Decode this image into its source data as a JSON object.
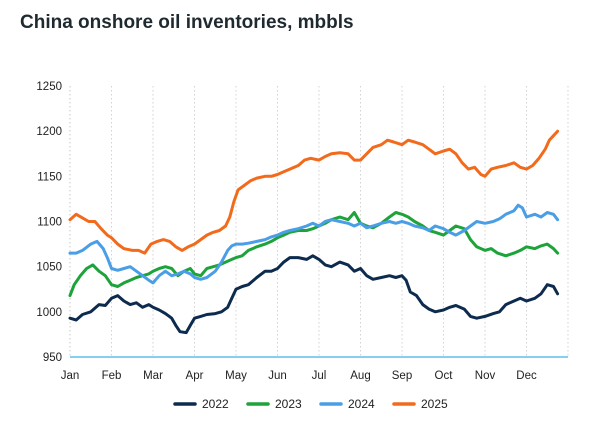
{
  "chart_data": {
    "type": "line",
    "title": "China onshore oil inventories, mbbls",
    "xlabel": "",
    "ylabel": "",
    "x_ticks": [
      "Jan",
      "Feb",
      "Mar",
      "Apr",
      "May",
      "Jun",
      "Jul",
      "Aug",
      "Sep",
      "Oct",
      "Nov",
      "Dec"
    ],
    "y_ticks": [
      950,
      1000,
      1050,
      1100,
      1150,
      1200,
      1250
    ],
    "ylim": [
      950,
      1250
    ],
    "xlim": [
      1,
      13
    ],
    "x_unit_note": "month",
    "grid": "vertical dotted",
    "legend_position": "bottom",
    "series": [
      {
        "name": "2022",
        "color": "#0d2b4e",
        "points": [
          [
            1.0,
            993
          ],
          [
            1.15,
            991
          ],
          [
            1.3,
            997
          ],
          [
            1.5,
            1000
          ],
          [
            1.7,
            1008
          ],
          [
            1.85,
            1007
          ],
          [
            2.0,
            1015
          ],
          [
            2.15,
            1018
          ],
          [
            2.3,
            1012
          ],
          [
            2.45,
            1008
          ],
          [
            2.6,
            1010
          ],
          [
            2.75,
            1005
          ],
          [
            2.9,
            1008
          ],
          [
            3.0,
            1005
          ],
          [
            3.15,
            1002
          ],
          [
            3.3,
            998
          ],
          [
            3.45,
            993
          ],
          [
            3.55,
            985
          ],
          [
            3.65,
            978
          ],
          [
            3.8,
            977
          ],
          [
            3.9,
            985
          ],
          [
            4.0,
            993
          ],
          [
            4.15,
            995
          ],
          [
            4.3,
            997
          ],
          [
            4.5,
            998
          ],
          [
            4.65,
            1000
          ],
          [
            4.8,
            1005
          ],
          [
            4.9,
            1015
          ],
          [
            5.0,
            1025
          ],
          [
            5.15,
            1028
          ],
          [
            5.3,
            1030
          ],
          [
            5.5,
            1038
          ],
          [
            5.7,
            1045
          ],
          [
            5.85,
            1045
          ],
          [
            6.0,
            1048
          ],
          [
            6.15,
            1055
          ],
          [
            6.3,
            1060
          ],
          [
            6.5,
            1060
          ],
          [
            6.7,
            1058
          ],
          [
            6.85,
            1062
          ],
          [
            7.0,
            1058
          ],
          [
            7.15,
            1052
          ],
          [
            7.3,
            1050
          ],
          [
            7.5,
            1055
          ],
          [
            7.7,
            1052
          ],
          [
            7.85,
            1045
          ],
          [
            8.0,
            1048
          ],
          [
            8.15,
            1040
          ],
          [
            8.3,
            1036
          ],
          [
            8.5,
            1038
          ],
          [
            8.7,
            1040
          ],
          [
            8.85,
            1038
          ],
          [
            9.0,
            1040
          ],
          [
            9.1,
            1035
          ],
          [
            9.2,
            1022
          ],
          [
            9.35,
            1018
          ],
          [
            9.5,
            1008
          ],
          [
            9.65,
            1003
          ],
          [
            9.8,
            1000
          ],
          [
            10.0,
            1002
          ],
          [
            10.15,
            1005
          ],
          [
            10.3,
            1007
          ],
          [
            10.5,
            1003
          ],
          [
            10.65,
            995
          ],
          [
            10.8,
            993
          ],
          [
            11.0,
            995
          ],
          [
            11.2,
            998
          ],
          [
            11.35,
            1000
          ],
          [
            11.5,
            1008
          ],
          [
            11.7,
            1012
          ],
          [
            11.85,
            1015
          ],
          [
            12.0,
            1012
          ],
          [
            12.2,
            1015
          ],
          [
            12.35,
            1020
          ],
          [
            12.5,
            1030
          ],
          [
            12.65,
            1028
          ],
          [
            12.75,
            1020
          ]
        ]
      },
      {
        "name": "2023",
        "color": "#1ea33a",
        "points": [
          [
            1.0,
            1018
          ],
          [
            1.1,
            1030
          ],
          [
            1.25,
            1040
          ],
          [
            1.4,
            1048
          ],
          [
            1.55,
            1052
          ],
          [
            1.7,
            1045
          ],
          [
            1.85,
            1040
          ],
          [
            2.0,
            1030
          ],
          [
            2.15,
            1028
          ],
          [
            2.3,
            1032
          ],
          [
            2.45,
            1035
          ],
          [
            2.6,
            1038
          ],
          [
            2.75,
            1040
          ],
          [
            2.9,
            1042
          ],
          [
            3.0,
            1045
          ],
          [
            3.15,
            1048
          ],
          [
            3.3,
            1050
          ],
          [
            3.45,
            1048
          ],
          [
            3.6,
            1040
          ],
          [
            3.75,
            1045
          ],
          [
            3.9,
            1048
          ],
          [
            4.0,
            1042
          ],
          [
            4.15,
            1040
          ],
          [
            4.3,
            1048
          ],
          [
            4.45,
            1050
          ],
          [
            4.6,
            1052
          ],
          [
            4.75,
            1055
          ],
          [
            4.9,
            1058
          ],
          [
            5.0,
            1060
          ],
          [
            5.15,
            1062
          ],
          [
            5.3,
            1068
          ],
          [
            5.5,
            1072
          ],
          [
            5.7,
            1075
          ],
          [
            5.85,
            1078
          ],
          [
            6.0,
            1082
          ],
          [
            6.15,
            1085
          ],
          [
            6.3,
            1088
          ],
          [
            6.5,
            1090
          ],
          [
            6.7,
            1090
          ],
          [
            6.85,
            1092
          ],
          [
            7.0,
            1095
          ],
          [
            7.15,
            1098
          ],
          [
            7.3,
            1102
          ],
          [
            7.5,
            1105
          ],
          [
            7.7,
            1102
          ],
          [
            7.85,
            1110
          ],
          [
            8.0,
            1098
          ],
          [
            8.15,
            1095
          ],
          [
            8.3,
            1093
          ],
          [
            8.5,
            1098
          ],
          [
            8.7,
            1105
          ],
          [
            8.85,
            1110
          ],
          [
            9.0,
            1108
          ],
          [
            9.15,
            1105
          ],
          [
            9.3,
            1100
          ],
          [
            9.5,
            1095
          ],
          [
            9.65,
            1090
          ],
          [
            9.8,
            1088
          ],
          [
            10.0,
            1085
          ],
          [
            10.15,
            1090
          ],
          [
            10.3,
            1095
          ],
          [
            10.5,
            1092
          ],
          [
            10.65,
            1080
          ],
          [
            10.8,
            1072
          ],
          [
            11.0,
            1068
          ],
          [
            11.15,
            1070
          ],
          [
            11.3,
            1065
          ],
          [
            11.5,
            1062
          ],
          [
            11.7,
            1065
          ],
          [
            11.85,
            1068
          ],
          [
            12.0,
            1072
          ],
          [
            12.2,
            1070
          ],
          [
            12.35,
            1073
          ],
          [
            12.5,
            1075
          ],
          [
            12.65,
            1070
          ],
          [
            12.75,
            1065
          ]
        ]
      },
      {
        "name": "2024",
        "color": "#4a9ee6",
        "points": [
          [
            1.0,
            1065
          ],
          [
            1.15,
            1065
          ],
          [
            1.3,
            1068
          ],
          [
            1.5,
            1075
          ],
          [
            1.65,
            1078
          ],
          [
            1.8,
            1070
          ],
          [
            1.9,
            1060
          ],
          [
            2.0,
            1048
          ],
          [
            2.15,
            1046
          ],
          [
            2.3,
            1048
          ],
          [
            2.45,
            1050
          ],
          [
            2.6,
            1045
          ],
          [
            2.75,
            1040
          ],
          [
            2.9,
            1035
          ],
          [
            3.0,
            1032
          ],
          [
            3.15,
            1040
          ],
          [
            3.3,
            1045
          ],
          [
            3.45,
            1040
          ],
          [
            3.6,
            1042
          ],
          [
            3.75,
            1045
          ],
          [
            3.9,
            1042
          ],
          [
            4.0,
            1038
          ],
          [
            4.15,
            1036
          ],
          [
            4.3,
            1038
          ],
          [
            4.5,
            1045
          ],
          [
            4.65,
            1055
          ],
          [
            4.8,
            1068
          ],
          [
            4.9,
            1073
          ],
          [
            5.0,
            1075
          ],
          [
            5.15,
            1075
          ],
          [
            5.3,
            1076
          ],
          [
            5.5,
            1078
          ],
          [
            5.7,
            1080
          ],
          [
            5.85,
            1083
          ],
          [
            6.0,
            1085
          ],
          [
            6.15,
            1088
          ],
          [
            6.3,
            1090
          ],
          [
            6.5,
            1092
          ],
          [
            6.7,
            1095
          ],
          [
            6.85,
            1098
          ],
          [
            7.0,
            1095
          ],
          [
            7.15,
            1100
          ],
          [
            7.3,
            1102
          ],
          [
            7.5,
            1100
          ],
          [
            7.7,
            1098
          ],
          [
            7.85,
            1095
          ],
          [
            8.0,
            1098
          ],
          [
            8.15,
            1093
          ],
          [
            8.3,
            1095
          ],
          [
            8.5,
            1098
          ],
          [
            8.7,
            1100
          ],
          [
            8.85,
            1098
          ],
          [
            9.0,
            1100
          ],
          [
            9.15,
            1098
          ],
          [
            9.3,
            1095
          ],
          [
            9.5,
            1093
          ],
          [
            9.65,
            1090
          ],
          [
            9.8,
            1095
          ],
          [
            10.0,
            1092
          ],
          [
            10.15,
            1088
          ],
          [
            10.3,
            1085
          ],
          [
            10.5,
            1090
          ],
          [
            10.65,
            1095
          ],
          [
            10.8,
            1100
          ],
          [
            11.0,
            1098
          ],
          [
            11.2,
            1100
          ],
          [
            11.35,
            1103
          ],
          [
            11.5,
            1108
          ],
          [
            11.7,
            1112
          ],
          [
            11.8,
            1118
          ],
          [
            11.9,
            1115
          ],
          [
            12.0,
            1105
          ],
          [
            12.2,
            1108
          ],
          [
            12.35,
            1105
          ],
          [
            12.5,
            1110
          ],
          [
            12.65,
            1108
          ],
          [
            12.75,
            1102
          ]
        ]
      },
      {
        "name": "2025",
        "color": "#f26a1b",
        "points": [
          [
            1.0,
            1102
          ],
          [
            1.15,
            1108
          ],
          [
            1.3,
            1104
          ],
          [
            1.45,
            1100
          ],
          [
            1.6,
            1100
          ],
          [
            1.75,
            1092
          ],
          [
            1.9,
            1085
          ],
          [
            2.0,
            1082
          ],
          [
            2.15,
            1075
          ],
          [
            2.3,
            1070
          ],
          [
            2.5,
            1068
          ],
          [
            2.65,
            1068
          ],
          [
            2.8,
            1065
          ],
          [
            2.95,
            1075
          ],
          [
            3.1,
            1078
          ],
          [
            3.25,
            1080
          ],
          [
            3.4,
            1078
          ],
          [
            3.55,
            1072
          ],
          [
            3.7,
            1068
          ],
          [
            3.85,
            1072
          ],
          [
            4.0,
            1075
          ],
          [
            4.15,
            1080
          ],
          [
            4.3,
            1085
          ],
          [
            4.45,
            1088
          ],
          [
            4.6,
            1090
          ],
          [
            4.75,
            1095
          ],
          [
            4.85,
            1105
          ],
          [
            4.95,
            1122
          ],
          [
            5.05,
            1135
          ],
          [
            5.2,
            1140
          ],
          [
            5.35,
            1145
          ],
          [
            5.5,
            1148
          ],
          [
            5.7,
            1150
          ],
          [
            5.85,
            1150
          ],
          [
            6.0,
            1152
          ],
          [
            6.15,
            1155
          ],
          [
            6.3,
            1158
          ],
          [
            6.5,
            1162
          ],
          [
            6.65,
            1168
          ],
          [
            6.8,
            1170
          ],
          [
            7.0,
            1168
          ],
          [
            7.15,
            1172
          ],
          [
            7.3,
            1175
          ],
          [
            7.5,
            1176
          ],
          [
            7.7,
            1175
          ],
          [
            7.85,
            1168
          ],
          [
            8.0,
            1168
          ],
          [
            8.15,
            1175
          ],
          [
            8.3,
            1182
          ],
          [
            8.5,
            1185
          ],
          [
            8.65,
            1190
          ],
          [
            8.8,
            1188
          ],
          [
            9.0,
            1185
          ],
          [
            9.15,
            1190
          ],
          [
            9.3,
            1188
          ],
          [
            9.5,
            1185
          ],
          [
            9.65,
            1180
          ],
          [
            9.8,
            1175
          ],
          [
            10.0,
            1178
          ],
          [
            10.15,
            1180
          ],
          [
            10.3,
            1175
          ],
          [
            10.45,
            1165
          ],
          [
            10.6,
            1158
          ],
          [
            10.75,
            1160
          ],
          [
            10.9,
            1152
          ],
          [
            11.0,
            1150
          ],
          [
            11.15,
            1158
          ],
          [
            11.3,
            1160
          ],
          [
            11.5,
            1162
          ],
          [
            11.7,
            1165
          ],
          [
            11.85,
            1160
          ],
          [
            12.0,
            1158
          ],
          [
            12.15,
            1162
          ],
          [
            12.3,
            1170
          ],
          [
            12.45,
            1180
          ],
          [
            12.55,
            1190
          ],
          [
            12.65,
            1195
          ],
          [
            12.75,
            1200
          ]
        ]
      }
    ]
  }
}
